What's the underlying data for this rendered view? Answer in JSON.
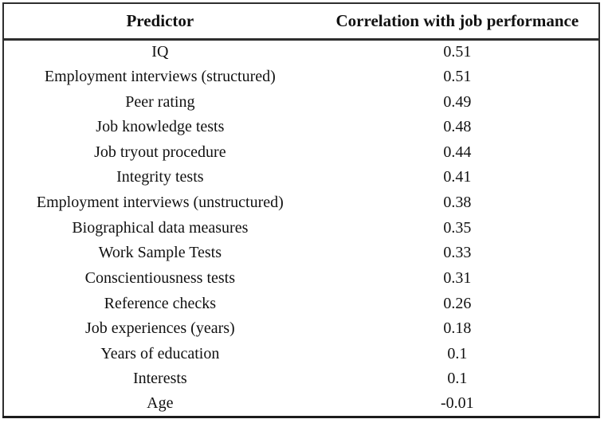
{
  "page": {
    "background": "#ffffff",
    "text_color": "#111111",
    "border_color": "#2e2e2e"
  },
  "table": {
    "columns": [
      {
        "key": "predictor",
        "label": "Predictor"
      },
      {
        "key": "correlation",
        "label": "Correlation with job performance"
      }
    ],
    "rows": [
      {
        "predictor": "IQ",
        "correlation": "0.51"
      },
      {
        "predictor": "Employment interviews (structured)",
        "correlation": "0.51"
      },
      {
        "predictor": "Peer rating",
        "correlation": "0.49"
      },
      {
        "predictor": "Job knowledge tests",
        "correlation": "0.48"
      },
      {
        "predictor": "Job tryout procedure",
        "correlation": "0.44"
      },
      {
        "predictor": "Integrity tests",
        "correlation": "0.41"
      },
      {
        "predictor": "Employment interviews (unstructured)",
        "correlation": "0.38"
      },
      {
        "predictor": "Biographical data measures",
        "correlation": "0.35"
      },
      {
        "predictor": "Work Sample Tests",
        "correlation": "0.33"
      },
      {
        "predictor": "Conscientiousness tests",
        "correlation": "0.31"
      },
      {
        "predictor": "Reference checks",
        "correlation": "0.26"
      },
      {
        "predictor": "Job experiences (years)",
        "correlation": "0.18"
      },
      {
        "predictor": "Years of education",
        "correlation": "0.1"
      },
      {
        "predictor": "Interests",
        "correlation": "0.1"
      },
      {
        "predictor": "Age",
        "correlation": "-0.01"
      }
    ]
  },
  "chart_data": {
    "type": "table",
    "columns": [
      "Predictor",
      "Correlation with job performance"
    ],
    "rows": [
      [
        "IQ",
        0.51
      ],
      [
        "Employment interviews (structured)",
        0.51
      ],
      [
        "Peer rating",
        0.49
      ],
      [
        "Job knowledge tests",
        0.48
      ],
      [
        "Job tryout procedure",
        0.44
      ],
      [
        "Integrity tests",
        0.41
      ],
      [
        "Employment interviews (unstructured)",
        0.38
      ],
      [
        "Biographical data measures",
        0.35
      ],
      [
        "Work Sample Tests",
        0.33
      ],
      [
        "Conscientiousness tests",
        0.31
      ],
      [
        "Reference checks",
        0.26
      ],
      [
        "Job experiences (years)",
        0.18
      ],
      [
        "Years of education",
        0.1
      ],
      [
        "Interests",
        0.1
      ],
      [
        "Age",
        -0.01
      ]
    ]
  }
}
